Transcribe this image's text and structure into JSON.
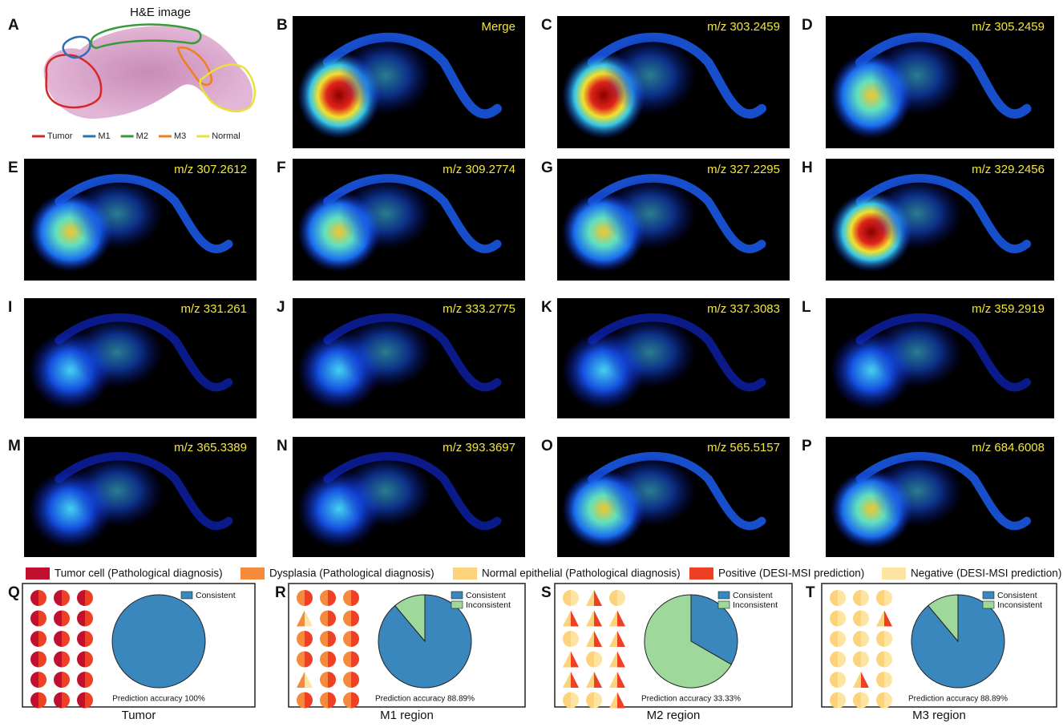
{
  "he_panel": {
    "label": "A",
    "title": "H&E image",
    "regions": [
      {
        "name": "Tumor",
        "color": "#d62728"
      },
      {
        "name": "M1",
        "color": "#2f6fb5"
      },
      {
        "name": "M2",
        "color": "#3a9a3a"
      },
      {
        "name": "M3",
        "color": "#f07f1c"
      },
      {
        "name": "Normal",
        "color": "#e8e23a"
      }
    ]
  },
  "maps": [
    {
      "label": "B",
      "mz": "Merge"
    },
    {
      "label": "C",
      "mz": "m/z 303.2459"
    },
    {
      "label": "D",
      "mz": "m/z 305.2459"
    },
    {
      "label": "E",
      "mz": "m/z 307.2612"
    },
    {
      "label": "F",
      "mz": "m/z 309.2774"
    },
    {
      "label": "G",
      "mz": "m/z 327.2295"
    },
    {
      "label": "H",
      "mz": "m/z 329.2456"
    },
    {
      "label": "I",
      "mz": "m/z 331.261"
    },
    {
      "label": "J",
      "mz": "m/z 333.2775"
    },
    {
      "label": "K",
      "mz": "m/z 337.3083"
    },
    {
      "label": "L",
      "mz": "m/z 359.2919"
    },
    {
      "label": "M",
      "mz": "m/z 365.3389"
    },
    {
      "label": "N",
      "mz": "m/z 393.3697"
    },
    {
      "label": "O",
      "mz": "m/z 565.5157"
    },
    {
      "label": "P",
      "mz": "m/z 684.6008"
    }
  ],
  "legend": [
    {
      "name": "Tumor cell (Pathological diagnosis)",
      "color": "#c0102e"
    },
    {
      "name": "Dysplasia (Pathological diagnosis)",
      "color": "#f58a3c"
    },
    {
      "name": "Normal epithelial (Pathological diagnosis)",
      "color": "#fcd27a"
    },
    {
      "name": "Positive (DESI-MSI prediction)",
      "color": "#ee4024"
    },
    {
      "name": "Negative (DESI-MSI prediction)",
      "color": "#fde4a0"
    }
  ],
  "pies": [
    {
      "label": "Q",
      "caption": "Tumor",
      "accuracy": "Prediction accuracy 100%",
      "series": [
        {
          "name": "Consistent",
          "color": "#3a87bd",
          "value": 100
        }
      ],
      "marker_colors": [
        "#c0102e",
        "#ee4024",
        "#fde4a0"
      ],
      "markers": [
        "circle",
        "circle",
        "circle",
        "circle",
        "circle",
        "circle",
        "circle",
        "circle",
        "circle",
        "circle",
        "circle",
        "circle",
        "circle",
        "circle",
        "circle",
        "circle",
        "circle",
        "circle"
      ]
    },
    {
      "label": "R",
      "caption": "M1 region",
      "accuracy": "Prediction accuracy 88.89%",
      "series": [
        {
          "name": "Consistent",
          "color": "#3a87bd",
          "value": 88.89
        },
        {
          "name": "Inconsistent",
          "color": "#9ed89a",
          "value": 11.11
        }
      ],
      "marker_colors": [
        "#f58a3c",
        "#ee4024",
        "#fde4a0"
      ],
      "markers": [
        "circle",
        "circle",
        "circle",
        "triangle",
        "circle",
        "circle",
        "circle",
        "circle",
        "circle",
        "circle",
        "circle",
        "circle",
        "triangle",
        "circle",
        "circle",
        "circle",
        "circle",
        "circle"
      ]
    },
    {
      "label": "S",
      "caption": "M2 region",
      "accuracy": "Prediction accuracy 33.33%",
      "series": [
        {
          "name": "Consistent",
          "color": "#3a87bd",
          "value": 33.33
        },
        {
          "name": "Inconsistent",
          "color": "#9ed89a",
          "value": 66.67
        }
      ],
      "marker_colors": [
        "#fcd27a",
        "#fde4a0",
        "#ee4024"
      ],
      "markers": [
        "circle",
        "triangle",
        "circle",
        "triangle",
        "triangle",
        "triangle",
        "circle",
        "triangle",
        "triangle",
        "triangle",
        "circle",
        "triangle",
        "triangle",
        "triangle",
        "triangle",
        "circle",
        "circle",
        "triangle"
      ]
    },
    {
      "label": "T",
      "caption": "M3 region",
      "accuracy": "Prediction accuracy 88.89%",
      "series": [
        {
          "name": "Consistent",
          "color": "#3a87bd",
          "value": 88.89
        },
        {
          "name": "Inconsistent",
          "color": "#9ed89a",
          "value": 11.11
        }
      ],
      "marker_colors": [
        "#fcd27a",
        "#fde4a0",
        "#ee4024"
      ],
      "markers": [
        "circle",
        "circle",
        "circle",
        "circle",
        "circle",
        "triangle",
        "circle",
        "circle",
        "circle",
        "circle",
        "circle",
        "circle",
        "circle",
        "triangle",
        "circle",
        "circle",
        "circle",
        "circle"
      ]
    }
  ]
}
